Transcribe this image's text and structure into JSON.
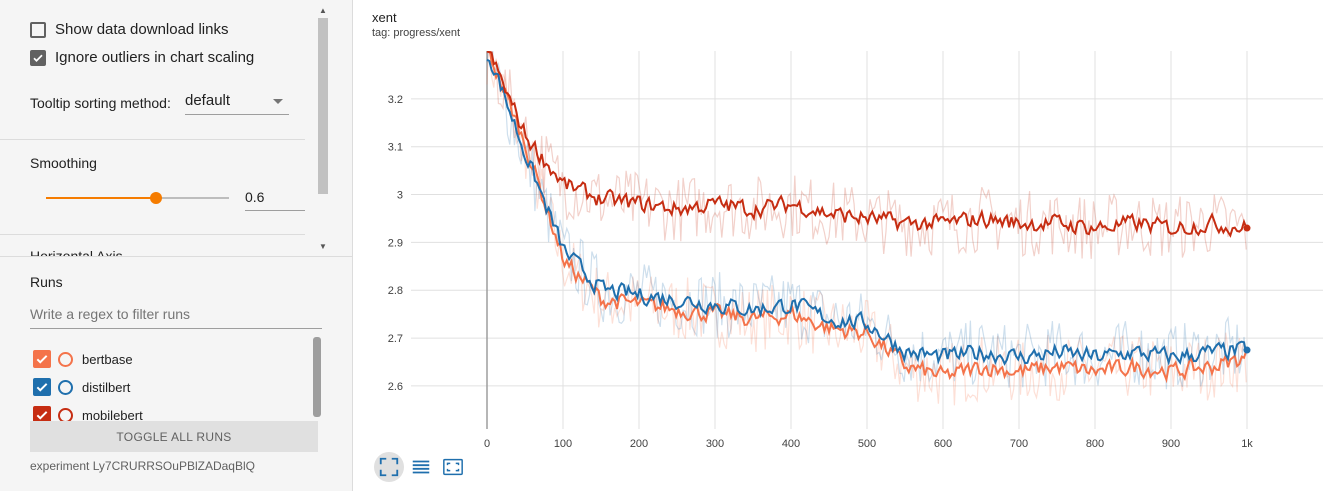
{
  "settings": {
    "show_download_links": {
      "label": "Show data download links",
      "checked": false
    },
    "ignore_outliers": {
      "label": "Ignore outliers in chart scaling",
      "checked": true
    },
    "tooltip_sorting": {
      "label": "Tooltip sorting method:",
      "value": "default"
    },
    "smoothing": {
      "label": "Smoothing",
      "value": "0.6",
      "fraction": 0.6
    },
    "next_section_label": "Horizontal Axis"
  },
  "runs": {
    "title": "Runs",
    "filter_placeholder": "Write a regex to filter runs",
    "items": [
      {
        "name": "bertbase",
        "color": "#f4734a",
        "checked": true
      },
      {
        "name": "distilbert",
        "color": "#1f6fad",
        "checked": true
      },
      {
        "name": "mobilebert",
        "color": "#c62d12",
        "checked": true
      }
    ],
    "toggle_label": "TOGGLE ALL RUNS",
    "experiment": "experiment Ly7CRURRSOuPBlZADaqBlQ"
  },
  "chart": {
    "title": "xent",
    "tag": "tag: progress/xent"
  },
  "toolbar": {
    "icons": [
      "fit-domain-icon",
      "log-scale-icon",
      "expand-icon"
    ]
  },
  "chart_data": {
    "type": "line",
    "title": "xent",
    "xlabel": "",
    "ylabel": "",
    "xlim": [
      -100,
      1100
    ],
    "ylim": [
      2.51,
      3.3
    ],
    "x_ticks": [
      0,
      100,
      200,
      300,
      400,
      500,
      600,
      700,
      800,
      900,
      1000
    ],
    "x_tick_labels": [
      "0",
      "100",
      "200",
      "300",
      "400",
      "500",
      "600",
      "700",
      "800",
      "900",
      "1k"
    ],
    "y_ticks": [
      2.6,
      2.7,
      2.8,
      2.9,
      3.0,
      3.1,
      3.2
    ],
    "y_tick_labels": [
      "2.6",
      "2.7",
      "2.8",
      "2.9",
      "3",
      "3.1",
      "3.2"
    ],
    "grid": true,
    "series": [
      {
        "name": "bertbase",
        "color": "#f4734a",
        "x": [
          0,
          50,
          100,
          150,
          200,
          250,
          300,
          350,
          400,
          450,
          500,
          550,
          600,
          650,
          700,
          750,
          800,
          850,
          900,
          950,
          1000
        ],
        "y": [
          3.3,
          3.1,
          2.86,
          2.78,
          2.77,
          2.76,
          2.75,
          2.74,
          2.75,
          2.72,
          2.71,
          2.64,
          2.62,
          2.64,
          2.63,
          2.64,
          2.63,
          2.64,
          2.63,
          2.64,
          2.66
        ]
      },
      {
        "name": "distilbert",
        "color": "#1f6fad",
        "x": [
          0,
          50,
          100,
          150,
          200,
          250,
          300,
          350,
          400,
          450,
          500,
          550,
          600,
          650,
          700,
          750,
          800,
          850,
          900,
          950,
          1000
        ],
        "y": [
          3.3,
          3.08,
          2.88,
          2.8,
          2.79,
          2.78,
          2.77,
          2.76,
          2.77,
          2.74,
          2.73,
          2.67,
          2.66,
          2.67,
          2.66,
          2.67,
          2.66,
          2.67,
          2.66,
          2.67,
          2.675
        ]
      },
      {
        "name": "mobilebert",
        "color": "#c62d12",
        "x": [
          0,
          50,
          100,
          150,
          200,
          250,
          300,
          350,
          400,
          450,
          500,
          550,
          600,
          650,
          700,
          750,
          800,
          850,
          900,
          950,
          1000
        ],
        "y": [
          3.3,
          3.12,
          3.02,
          2.99,
          2.98,
          2.97,
          2.98,
          2.97,
          2.98,
          2.96,
          2.95,
          2.94,
          2.94,
          2.95,
          2.94,
          2.94,
          2.93,
          2.94,
          2.93,
          2.94,
          2.93
        ]
      }
    ]
  }
}
